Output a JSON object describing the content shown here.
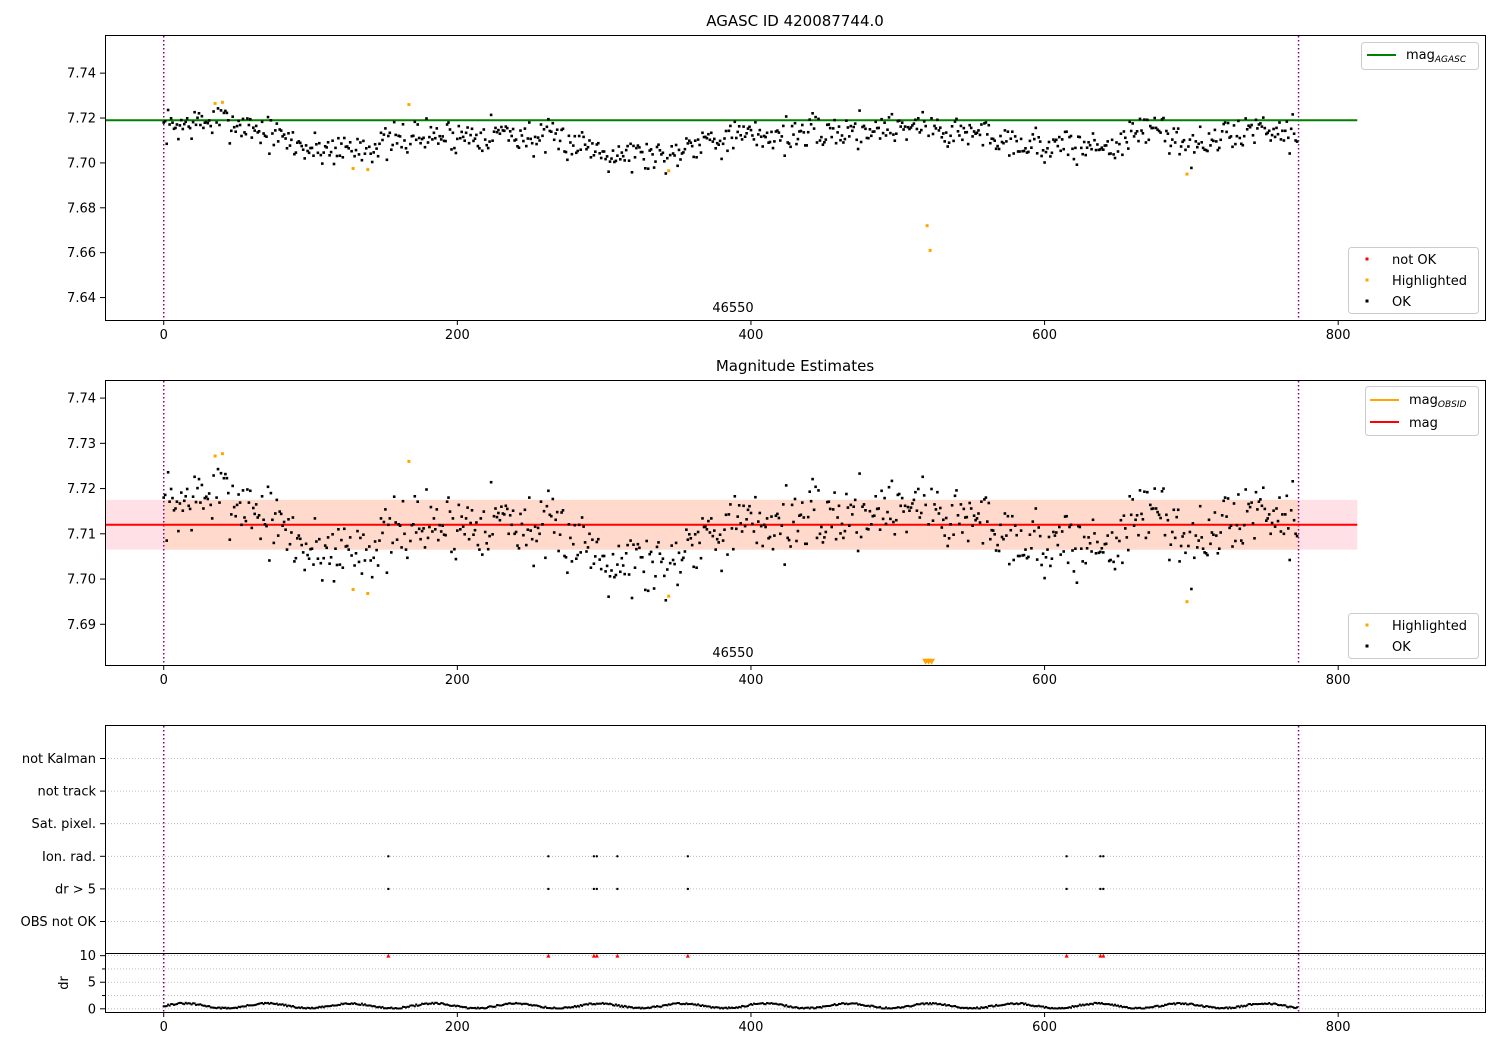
{
  "colors": {
    "ok": "#000000",
    "highlighted": "#ffa500",
    "not_ok": "#ff0000",
    "mag_agasc_line": "#008000",
    "mag_line": "#ff0000",
    "mag_obsid_line": "#ffa500",
    "band_inner": "#ffdacc",
    "band_outer": "#ffe0e6",
    "obs_boundary": "#800080",
    "grid": "#b0b0b0"
  },
  "chart_data": [
    {
      "type": "scatter",
      "id": "top",
      "title": "AGASC ID 420087744.0",
      "obsid_label": "46550",
      "xlim": [
        -40,
        900
      ],
      "ylim": [
        7.63,
        7.757
      ],
      "xticks": [
        0,
        200,
        400,
        600,
        800
      ],
      "yticks": [
        7.64,
        7.66,
        7.68,
        7.7,
        7.72,
        7.74
      ],
      "ytick_labels": [
        "7.64",
        "7.66",
        "7.68",
        "7.70",
        "7.72",
        "7.74"
      ],
      "obs_boundaries": [
        0,
        773
      ],
      "reference_line": {
        "name": "mag_AGASC",
        "y": 7.719,
        "x": [
          -40,
          813
        ]
      },
      "legend_lines": [
        {
          "label_main": "mag",
          "label_sub": "AGASC",
          "color": "#008000"
        }
      ],
      "legend_points": [
        {
          "label": "not OK",
          "color": "#ff0000"
        },
        {
          "label": "Highlighted",
          "color": "#ffa500"
        },
        {
          "label": "OK",
          "color": "#000000"
        }
      ],
      "series": [
        {
          "name": "OK",
          "color": "#000000",
          "noise_seed": 7,
          "n": 773,
          "x_step": 1
        },
        {
          "name": "Highlighted",
          "color": "#ffa500",
          "x": [
            35,
            40,
            129,
            139,
            167,
            344,
            520,
            522,
            697
          ],
          "y": [
            7.7265,
            7.727,
            7.6975,
            7.697,
            7.726,
            7.6965,
            7.672,
            7.661,
            7.695
          ]
        }
      ]
    },
    {
      "type": "scatter",
      "id": "middle",
      "title": "Magnitude Estimates",
      "obsid_label": "46550",
      "xlim": [
        -40,
        900
      ],
      "ylim": [
        7.681,
        7.744
      ],
      "xticks": [
        0,
        200,
        400,
        600,
        800
      ],
      "yticks": [
        7.69,
        7.7,
        7.71,
        7.72,
        7.73,
        7.74
      ],
      "ytick_labels": [
        "7.69",
        "7.70",
        "7.71",
        "7.72",
        "7.73",
        "7.74"
      ],
      "obs_boundaries": [
        0,
        773
      ],
      "mag_line": {
        "name": "mag",
        "y": 7.712,
        "x": [
          -40,
          813
        ]
      },
      "band": {
        "y": [
          7.7065,
          7.7175
        ],
        "x_inner": [
          0,
          773
        ],
        "x_outer": [
          -40,
          813
        ]
      },
      "legend_lines": [
        {
          "label_main": "mag",
          "label_sub": "OBSID",
          "color": "#ffa500"
        },
        {
          "label_main": "mag",
          "label_sub": "",
          "color": "#ff0000"
        }
      ],
      "legend_points": [
        {
          "label": "Highlighted",
          "color": "#ffa500"
        },
        {
          "label": "OK",
          "color": "#000000"
        }
      ],
      "series": [
        {
          "name": "OK",
          "color": "#000000",
          "noise_seed": 7,
          "n": 773,
          "x_step": 1
        },
        {
          "name": "Highlighted",
          "color": "#ffa500",
          "x": [
            35,
            40,
            129,
            139,
            167,
            344,
            697
          ],
          "y": [
            7.7272,
            7.7277,
            7.6977,
            7.6968,
            7.726,
            7.6962,
            7.695
          ]
        },
        {
          "name": "Highlighted (off-scale)",
          "color": "#ffa500",
          "marker": "triangle-down",
          "x": [
            519,
            521,
            523
          ],
          "y": [
            7.6815,
            7.6815,
            7.6815
          ]
        }
      ]
    },
    {
      "type": "scatter",
      "id": "flags",
      "xlim": [
        -40,
        900
      ],
      "obs_boundaries": [
        0,
        773
      ],
      "categories": [
        "OBS not OK",
        "dr > 5",
        "Ion. rad.",
        "Sat. pixel.",
        "not track",
        "not Kalman"
      ],
      "flag_points": {
        "dr > 5": [
          153,
          262,
          293,
          295,
          309,
          357,
          615,
          638,
          640
        ],
        "Ion. rad.": [
          153,
          262,
          293,
          295,
          309,
          357,
          615,
          638,
          640
        ]
      }
    },
    {
      "type": "scatter",
      "id": "dr",
      "ylabel": "dr",
      "xlim": [
        -40,
        900
      ],
      "ylim": [
        -0.6,
        10.5
      ],
      "xticks": [
        0,
        200,
        400,
        600,
        800
      ],
      "yticks": [
        0,
        5,
        10
      ],
      "ytick_labels": [
        "0",
        "5",
        "10"
      ],
      "obs_boundaries": [
        0,
        773
      ],
      "n": 773,
      "clipped_markers": {
        "y": 10,
        "x": [
          153,
          262,
          293,
          295,
          309,
          357,
          615,
          638,
          640
        ]
      }
    }
  ]
}
